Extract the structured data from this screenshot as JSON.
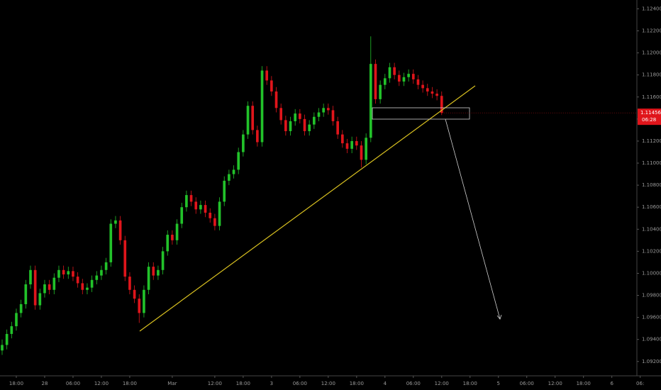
{
  "chart_data": {
    "type": "candlestick",
    "x": [
      0,
      1,
      2,
      3,
      4,
      5,
      6,
      7,
      8,
      9,
      10,
      11,
      12,
      13,
      14,
      15,
      16,
      17,
      18,
      19,
      20,
      21,
      22,
      23,
      24,
      25,
      26,
      27,
      28,
      29,
      30,
      31,
      32,
      33,
      34,
      35,
      36,
      37,
      38,
      39,
      40,
      41,
      42,
      43,
      44,
      45,
      46,
      47,
      48,
      49,
      50,
      51,
      52,
      53,
      54,
      55,
      56,
      57,
      58,
      59,
      60,
      61,
      62,
      63,
      64,
      65,
      66,
      67,
      68,
      69,
      70,
      71,
      72,
      73,
      74,
      75,
      76,
      77,
      78,
      79,
      80,
      81,
      82,
      83,
      84,
      85,
      86,
      87,
      88,
      89,
      90,
      91,
      92,
      93
    ],
    "open": [
      1.093,
      1.0935,
      1.0945,
      1.0952,
      1.0964,
      1.0972,
      1.099,
      1.1003,
      1.0971,
      1.0982,
      1.099,
      1.0985,
      1.0996,
      1.1003,
      1.0999,
      1.1002,
      1.0997,
      1.0991,
      1.0985,
      1.0987,
      1.0994,
      1.0998,
      1.1003,
      1.101,
      1.1045,
      1.1048,
      1.103,
      1.0997,
      1.0985,
      1.0977,
      1.0964,
      1.0985,
      1.1006,
      1.0998,
      1.1003,
      1.102,
      1.1035,
      1.103,
      1.1045,
      1.106,
      1.1071,
      1.1065,
      1.1058,
      1.1062,
      1.1055,
      1.105,
      1.1043,
      1.1065,
      1.1084,
      1.109,
      1.1094,
      1.111,
      1.1126,
      1.1152,
      1.113,
      1.1119,
      1.1184,
      1.1175,
      1.1165,
      1.115,
      1.1139,
      1.1129,
      1.1138,
      1.1145,
      1.114,
      1.1129,
      1.1135,
      1.1142,
      1.1146,
      1.115,
      1.1148,
      1.1138,
      1.1126,
      1.1118,
      1.1113,
      1.112,
      1.1116,
      1.1103,
      1.1123,
      1.119,
      1.1158,
      1.1171,
      1.1177,
      1.1187,
      1.118,
      1.1174,
      1.1178,
      1.1181,
      1.1176,
      1.1171,
      1.1168,
      1.1165,
      1.1163,
      1.1161
    ],
    "high": [
      1.094,
      1.0949,
      1.0956,
      1.0968,
      1.0976,
      1.0994,
      1.1007,
      1.1007,
      1.0986,
      1.0994,
      1.0994,
      1.1,
      1.1007,
      1.1007,
      1.1006,
      1.1006,
      1.1001,
      1.0995,
      1.0991,
      1.0998,
      1.1002,
      1.1007,
      1.1014,
      1.1049,
      1.1052,
      1.1052,
      1.1034,
      1.1001,
      1.0989,
      1.0981,
      1.0989,
      1.101,
      1.101,
      1.1007,
      1.1024,
      1.1039,
      1.1039,
      1.1049,
      1.1064,
      1.1075,
      1.1075,
      1.1069,
      1.1066,
      1.1066,
      1.1059,
      1.1054,
      1.1069,
      1.1088,
      1.1094,
      1.1098,
      1.1114,
      1.113,
      1.1156,
      1.1156,
      1.1134,
      1.1188,
      1.1188,
      1.1179,
      1.1169,
      1.1154,
      1.1143,
      1.1142,
      1.1149,
      1.1149,
      1.1144,
      1.1139,
      1.1146,
      1.115,
      1.1154,
      1.1154,
      1.1152,
      1.1142,
      1.113,
      1.1122,
      1.1124,
      1.1124,
      1.112,
      1.1127,
      1.1215,
      1.1194,
      1.1175,
      1.1181,
      1.1191,
      1.1191,
      1.1184,
      1.1182,
      1.1185,
      1.1185,
      1.118,
      1.1175,
      1.1172,
      1.1169,
      1.1167,
      1.1165
    ],
    "low": [
      1.0926,
      1.0931,
      1.0941,
      1.0948,
      1.096,
      1.0968,
      1.0986,
      1.0967,
      1.0967,
      1.0978,
      1.0981,
      1.0981,
      1.0992,
      1.0995,
      1.0995,
      1.0993,
      1.0987,
      1.0981,
      1.0981,
      1.0983,
      1.099,
      1.0994,
      1.0999,
      1.1006,
      1.1041,
      1.1026,
      1.0993,
      1.0981,
      1.0973,
      1.0955,
      1.096,
      1.0981,
      1.0994,
      1.0994,
      1.0999,
      1.1016,
      1.1026,
      1.1026,
      1.1041,
      1.1056,
      1.1061,
      1.1054,
      1.1054,
      1.1051,
      1.1046,
      1.1039,
      1.1039,
      1.1061,
      1.108,
      1.1086,
      1.109,
      1.1106,
      1.1122,
      1.1126,
      1.1115,
      1.1115,
      1.1171,
      1.1161,
      1.1146,
      1.1135,
      1.1125,
      1.1125,
      1.1134,
      1.1136,
      1.1125,
      1.1125,
      1.1131,
      1.1138,
      1.1142,
      1.1144,
      1.1134,
      1.1122,
      1.1114,
      1.1109,
      1.1109,
      1.1112,
      1.1096,
      1.1099,
      1.1119,
      1.1154,
      1.1154,
      1.1167,
      1.1173,
      1.1176,
      1.117,
      1.117,
      1.1174,
      1.1172,
      1.1167,
      1.1164,
      1.1161,
      1.1159,
      1.1157,
      1.11436
    ],
    "close": [
      1.0935,
      1.0945,
      1.0952,
      1.0964,
      1.0972,
      1.099,
      1.1003,
      1.0971,
      1.0982,
      1.099,
      1.0985,
      1.0996,
      1.1003,
      1.0999,
      1.1002,
      1.0997,
      1.0991,
      1.0985,
      1.0987,
      1.0994,
      1.0998,
      1.1003,
      1.101,
      1.1045,
      1.1048,
      1.103,
      1.0997,
      1.0985,
      1.0977,
      1.0964,
      1.0985,
      1.1006,
      1.0998,
      1.1003,
      1.102,
      1.1035,
      1.103,
      1.1045,
      1.106,
      1.1071,
      1.1065,
      1.1058,
      1.1062,
      1.1055,
      1.105,
      1.1043,
      1.1065,
      1.1084,
      1.109,
      1.1094,
      1.111,
      1.1126,
      1.1152,
      1.113,
      1.1119,
      1.1184,
      1.1175,
      1.1165,
      1.115,
      1.1139,
      1.1129,
      1.1138,
      1.1145,
      1.114,
      1.1129,
      1.1135,
      1.1142,
      1.1146,
      1.115,
      1.1148,
      1.1138,
      1.1126,
      1.1118,
      1.1113,
      1.112,
      1.1116,
      1.1103,
      1.1123,
      1.119,
      1.1158,
      1.1171,
      1.1177,
      1.1187,
      1.118,
      1.1174,
      1.1178,
      1.1181,
      1.1176,
      1.1171,
      1.1168,
      1.1165,
      1.1163,
      1.1161,
      1.11456
    ],
    "up_color": "#22c22a",
    "down_color": "#e0151b",
    "xlim": [
      -0.45,
      134.3
    ],
    "xticks": [
      {
        "value": 3,
        "label": "18:00"
      },
      {
        "value": 9,
        "label": "28"
      },
      {
        "value": 15,
        "label": "06:00"
      },
      {
        "value": 21,
        "label": "12:00"
      },
      {
        "value": 27,
        "label": "18:00"
      },
      {
        "value": 36,
        "label": "Mar"
      },
      {
        "value": 45,
        "label": "12:00"
      },
      {
        "value": 51,
        "label": "18:00"
      },
      {
        "value": 57,
        "label": "3"
      },
      {
        "value": 63,
        "label": "06:00"
      },
      {
        "value": 69,
        "label": "12:00"
      },
      {
        "value": 75,
        "label": "18:00"
      },
      {
        "value": 81,
        "label": "4"
      },
      {
        "value": 87,
        "label": "06:00"
      },
      {
        "value": 93,
        "label": "12:00"
      },
      {
        "value": 99,
        "label": "18:00"
      },
      {
        "value": 105,
        "label": "5"
      },
      {
        "value": 111,
        "label": "06:00"
      },
      {
        "value": 117,
        "label": "12:00"
      },
      {
        "value": 123,
        "label": "18:00"
      },
      {
        "value": 129,
        "label": "6"
      },
      {
        "value": 135,
        "label": "06:"
      }
    ],
    "ylim": [
      1.0907,
      1.1248
    ],
    "yticks": [
      {
        "value": 1.092,
        "label": "1.09200"
      },
      {
        "value": 1.094,
        "label": "1.09400"
      },
      {
        "value": 1.096,
        "label": "1.09600"
      },
      {
        "value": 1.098,
        "label": "1.09800"
      },
      {
        "value": 1.1,
        "label": "1.10000"
      },
      {
        "value": 1.102,
        "label": "1.10200"
      },
      {
        "value": 1.104,
        "label": "1.10400"
      },
      {
        "value": 1.106,
        "label": "1.10600"
      },
      {
        "value": 1.108,
        "label": "1.10800"
      },
      {
        "value": 1.11,
        "label": "1.11000"
      },
      {
        "value": 1.112,
        "label": "1.11200"
      },
      {
        "value": 1.114,
        "label": "1.11400"
      },
      {
        "value": 1.116,
        "label": "1.11600"
      },
      {
        "value": 1.118,
        "label": "1.11800"
      },
      {
        "value": 1.12,
        "label": "1.12000"
      },
      {
        "value": 1.122,
        "label": "1.12200"
      },
      {
        "value": 1.124,
        "label": "1.12400"
      }
    ],
    "countdown": "06:28"
  }
}
